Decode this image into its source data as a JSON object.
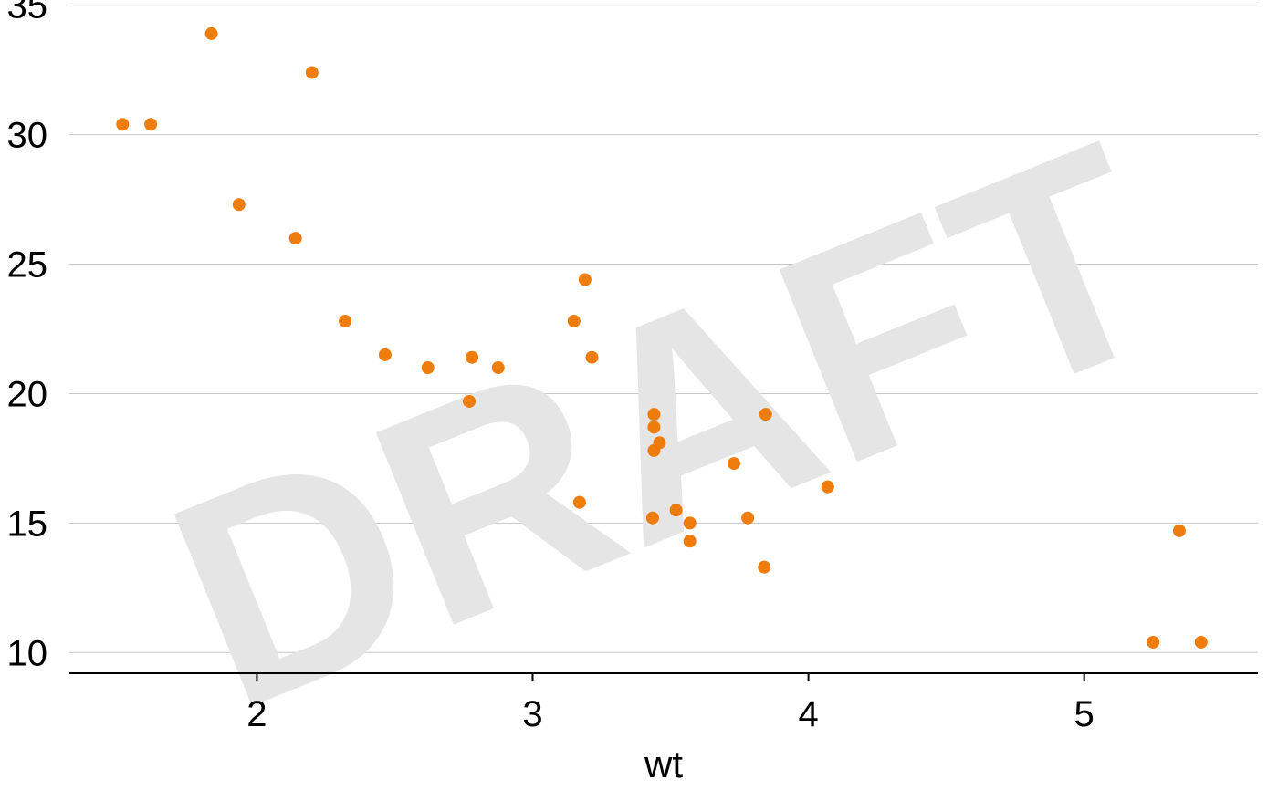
{
  "chart_data": {
    "type": "scatter",
    "title": "",
    "xlabel": "wt",
    "ylabel": "",
    "xlim": [
      1.32,
      5.63
    ],
    "ylim": [
      9.2,
      35.2
    ],
    "x_ticks": [
      2,
      3,
      4,
      5
    ],
    "y_ticks": [
      10,
      15,
      20,
      25,
      30,
      35
    ],
    "grid": "horizontal",
    "point_color": "#EE7600",
    "points": [
      {
        "x": 1.513,
        "y": 30.4
      },
      {
        "x": 1.615,
        "y": 30.4
      },
      {
        "x": 1.835,
        "y": 33.9
      },
      {
        "x": 1.935,
        "y": 27.3
      },
      {
        "x": 2.14,
        "y": 26.0
      },
      {
        "x": 2.2,
        "y": 32.4
      },
      {
        "x": 2.32,
        "y": 22.8
      },
      {
        "x": 2.465,
        "y": 21.5
      },
      {
        "x": 2.62,
        "y": 21.0
      },
      {
        "x": 2.77,
        "y": 19.7
      },
      {
        "x": 2.78,
        "y": 21.4
      },
      {
        "x": 2.875,
        "y": 21.0
      },
      {
        "x": 3.15,
        "y": 22.8
      },
      {
        "x": 3.17,
        "y": 15.8
      },
      {
        "x": 3.19,
        "y": 24.4
      },
      {
        "x": 3.215,
        "y": 21.4
      },
      {
        "x": 3.435,
        "y": 15.2
      },
      {
        "x": 3.44,
        "y": 18.7
      },
      {
        "x": 3.44,
        "y": 19.2
      },
      {
        "x": 3.44,
        "y": 17.8
      },
      {
        "x": 3.46,
        "y": 18.1
      },
      {
        "x": 3.52,
        "y": 15.5
      },
      {
        "x": 3.57,
        "y": 14.3
      },
      {
        "x": 3.57,
        "y": 15.0
      },
      {
        "x": 3.73,
        "y": 17.3
      },
      {
        "x": 3.78,
        "y": 15.2
      },
      {
        "x": 3.84,
        "y": 13.3
      },
      {
        "x": 3.845,
        "y": 19.2
      },
      {
        "x": 4.07,
        "y": 16.4
      },
      {
        "x": 5.25,
        "y": 10.4
      },
      {
        "x": 5.345,
        "y": 14.7
      },
      {
        "x": 5.424,
        "y": 10.4
      }
    ]
  },
  "watermark": {
    "text": "DRAFT",
    "color": "#E5E5E5"
  }
}
